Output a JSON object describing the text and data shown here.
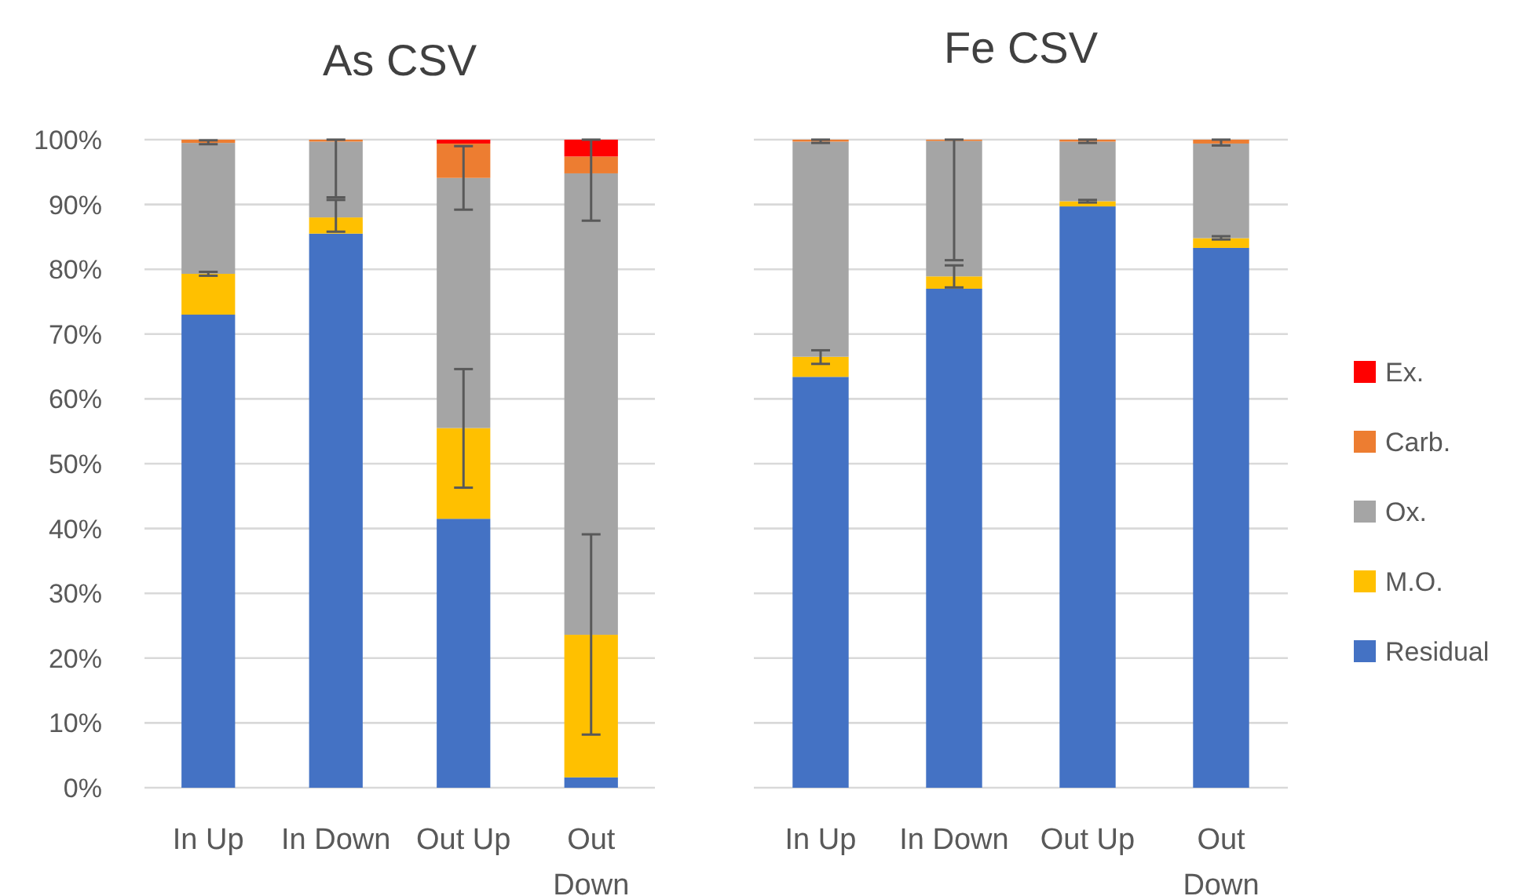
{
  "chart_data": [
    {
      "type": "bar",
      "title": "As CSV",
      "stacked": true,
      "categories": [
        "In Up",
        "In Down",
        "Out Up",
        "Out Down"
      ],
      "ylim": [
        0,
        100
      ],
      "yticks": [
        {
          "value": 0,
          "label": "0%"
        },
        {
          "value": 10,
          "label": "10%"
        },
        {
          "value": 20,
          "label": "20%"
        },
        {
          "value": 30,
          "label": "30%"
        },
        {
          "value": 40,
          "label": "40%"
        },
        {
          "value": 50,
          "label": "50%"
        },
        {
          "value": 60,
          "label": "60%"
        },
        {
          "value": 70,
          "label": "70%"
        },
        {
          "value": 80,
          "label": "80%"
        },
        {
          "value": 90,
          "label": "90%"
        },
        {
          "value": 100,
          "label": "100%"
        }
      ],
      "grid": "y",
      "legend": false,
      "series": [
        {
          "color": "#4472c4",
          "values": [
            73,
            85.5,
            41.5,
            1.6
          ]
        },
        {
          "color": "#ffc000",
          "values": [
            6.3,
            2.5,
            14,
            22
          ],
          "errors": [
            [
              79,
              79.6
            ],
            [
              85.8,
              90.7
            ],
            [
              46.3,
              64.6
            ],
            [
              8.2,
              39.1
            ]
          ]
        },
        {
          "color": "#a5a5a5",
          "values": [
            20.2,
            11.7,
            38.6,
            71.2
          ],
          "errors": [
            [
              99.3,
              99.9
            ],
            [
              91.1,
              100
            ],
            [
              89.2,
              99
            ],
            [
              87.5,
              100
            ]
          ]
        },
        {
          "color": "#ed7d31",
          "values": [
            0.5,
            0.3,
            5.3,
            2.6
          ]
        },
        {
          "color": "#ff0000",
          "values": [
            0,
            0,
            0.6,
            2.6
          ]
        }
      ]
    },
    {
      "type": "bar",
      "title": "Fe CSV",
      "stacked": true,
      "categories": [
        "In Up",
        "In Down",
        "Out Up",
        "Out Down"
      ],
      "ylim": [
        0,
        100
      ],
      "yticks": [
        {
          "value": 0,
          "label": null
        },
        {
          "value": 10,
          "label": null
        },
        {
          "value": 20,
          "label": null
        },
        {
          "value": 30,
          "label": null
        },
        {
          "value": 40,
          "label": null
        },
        {
          "value": 50,
          "label": null
        },
        {
          "value": 60,
          "label": null
        },
        {
          "value": 70,
          "label": null
        },
        {
          "value": 80,
          "label": null
        },
        {
          "value": 90,
          "label": null
        },
        {
          "value": 100,
          "label": null
        }
      ],
      "grid": "y",
      "legend": "right",
      "tick_labels": "x",
      "series": [
        {
          "name": "Residual",
          "color": "#4472c4",
          "values": [
            63.4,
            77,
            89.7,
            83.3
          ]
        },
        {
          "name": "M.O.",
          "color": "#ffc000",
          "values": [
            3.1,
            1.9,
            0.8,
            1.5
          ],
          "errors": [
            [
              65.4,
              67.5
            ],
            [
              77.2,
              80.6
            ],
            [
              90.3,
              90.7
            ],
            [
              84.6,
              85.1
            ]
          ]
        },
        {
          "name": "Ox.",
          "color": "#a5a5a5",
          "values": [
            33.2,
            20.9,
            9.2,
            14.6
          ],
          "errors": [
            [
              99.5,
              100
            ],
            [
              81.4,
              100
            ],
            [
              99.5,
              100
            ],
            [
              99.1,
              100
            ]
          ]
        },
        {
          "name": "Carb.",
          "color": "#ed7d31",
          "values": [
            0.3,
            0.2,
            0.3,
            0.6
          ]
        },
        {
          "name": "Ex.",
          "color": "#ff0000",
          "values": [
            0,
            0,
            0,
            0
          ]
        }
      ]
    }
  ]
}
